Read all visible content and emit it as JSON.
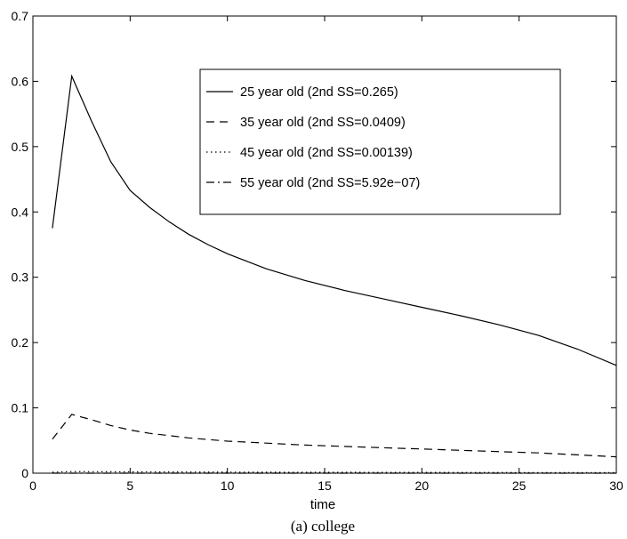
{
  "chart_data": {
    "type": "line",
    "xlabel": "time",
    "ylabel": "",
    "caption": "(a) college",
    "xlim": [
      0,
      30
    ],
    "ylim": [
      0,
      0.7
    ],
    "xticks": [
      0,
      5,
      10,
      15,
      20,
      25,
      30
    ],
    "yticks": [
      0,
      0.1,
      0.2,
      0.3,
      0.4,
      0.5,
      0.6,
      0.7
    ],
    "xtick_labels": [
      "0",
      "5",
      "10",
      "15",
      "20",
      "25",
      "30"
    ],
    "ytick_labels": [
      "0",
      "0.1",
      "0.2",
      "0.3",
      "0.4",
      "0.5",
      "0.6",
      "0.7"
    ],
    "grid": false,
    "legend_position": "top-right",
    "series": [
      {
        "name": "25 year old (2nd SS=0.265)",
        "style": "solid",
        "x": [
          1,
          2,
          3,
          4,
          5,
          6,
          7,
          8,
          9,
          10,
          12,
          14,
          16,
          18,
          20,
          22,
          24,
          26,
          28,
          30
        ],
        "y": [
          0.375,
          0.608,
          0.54,
          0.477,
          0.433,
          0.407,
          0.385,
          0.366,
          0.35,
          0.336,
          0.313,
          0.295,
          0.28,
          0.267,
          0.254,
          0.241,
          0.227,
          0.211,
          0.19,
          0.165
        ]
      },
      {
        "name": "35 year old (2nd SS=0.0409)",
        "style": "dashed",
        "x": [
          1,
          2,
          3,
          4,
          5,
          6,
          8,
          10,
          12,
          14,
          16,
          18,
          20,
          22,
          24,
          26,
          28,
          30
        ],
        "y": [
          0.052,
          0.09,
          0.082,
          0.073,
          0.066,
          0.061,
          0.054,
          0.049,
          0.046,
          0.043,
          0.041,
          0.039,
          0.037,
          0.035,
          0.033,
          0.031,
          0.028,
          0.025
        ]
      },
      {
        "name": "45 year old (2nd SS=0.00139)",
        "style": "dotted",
        "x": [
          1,
          2,
          5,
          10,
          15,
          20,
          25,
          30
        ],
        "y": [
          0.0015,
          0.0025,
          0.002,
          0.0016,
          0.0014,
          0.0012,
          0.001,
          0.0008
        ]
      },
      {
        "name": "55 year old (2nd SS=5.92e−07)",
        "style": "dashdot",
        "x": [
          1,
          30
        ],
        "y": [
          0,
          0
        ]
      }
    ]
  }
}
